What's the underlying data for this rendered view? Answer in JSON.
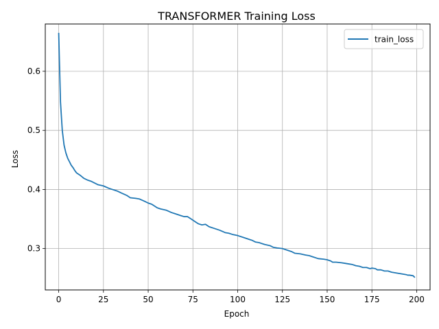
{
  "chart_data": {
    "type": "line",
    "title": "TRANSFORMER Training Loss",
    "xlabel": "Epoch",
    "ylabel": "Loss",
    "xlim": [
      -7.5,
      207.5
    ],
    "ylim": [
      0.23,
      0.68
    ],
    "xticks": [
      0,
      25,
      50,
      75,
      100,
      125,
      150,
      175,
      200
    ],
    "yticks": [
      0.3,
      0.4,
      0.5,
      0.6
    ],
    "ytick_labels": [
      "0.3",
      "0.4",
      "0.5",
      "0.6"
    ],
    "grid": true,
    "legend": "top-right",
    "series": [
      {
        "name": "train_loss",
        "color": "#1f77b4",
        "x": [
          0,
          1,
          2,
          3,
          4,
          5,
          6,
          7,
          8,
          9,
          10,
          12,
          14,
          16,
          18,
          20,
          22,
          25,
          28,
          30,
          33,
          35,
          38,
          40,
          43,
          45,
          48,
          50,
          52,
          54,
          55,
          57,
          60,
          63,
          65,
          68,
          70,
          72,
          74,
          75,
          77,
          78,
          80,
          82,
          84,
          85,
          87,
          90,
          93,
          95,
          97,
          100,
          103,
          105,
          107,
          108,
          110,
          112,
          115,
          118,
          120,
          122,
          125,
          128,
          130,
          132,
          135,
          138,
          140,
          142,
          145,
          148,
          150,
          152,
          153,
          155,
          158,
          160,
          162,
          164,
          165,
          166,
          168,
          170,
          172,
          174,
          175,
          177,
          178,
          180,
          182,
          184,
          185,
          186,
          188,
          190,
          192,
          194,
          195,
          196,
          198,
          199
        ],
        "y": [
          0.665,
          0.548,
          0.5,
          0.475,
          0.462,
          0.453,
          0.447,
          0.441,
          0.437,
          0.432,
          0.428,
          0.424,
          0.419,
          0.416,
          0.414,
          0.411,
          0.408,
          0.406,
          0.402,
          0.4,
          0.397,
          0.394,
          0.39,
          0.386,
          0.385,
          0.384,
          0.38,
          0.377,
          0.375,
          0.371,
          0.369,
          0.367,
          0.365,
          0.361,
          0.359,
          0.356,
          0.354,
          0.354,
          0.35,
          0.348,
          0.344,
          0.342,
          0.34,
          0.341,
          0.337,
          0.336,
          0.334,
          0.331,
          0.327,
          0.326,
          0.324,
          0.322,
          0.319,
          0.317,
          0.315,
          0.314,
          0.311,
          0.31,
          0.307,
          0.305,
          0.302,
          0.301,
          0.3,
          0.297,
          0.295,
          0.292,
          0.291,
          0.289,
          0.288,
          0.286,
          0.283,
          0.282,
          0.281,
          0.279,
          0.277,
          0.277,
          0.276,
          0.275,
          0.274,
          0.273,
          0.272,
          0.271,
          0.27,
          0.268,
          0.268,
          0.266,
          0.267,
          0.266,
          0.264,
          0.264,
          0.262,
          0.262,
          0.261,
          0.26,
          0.259,
          0.258,
          0.257,
          0.256,
          0.255,
          0.255,
          0.254,
          0.251
        ]
      }
    ]
  }
}
